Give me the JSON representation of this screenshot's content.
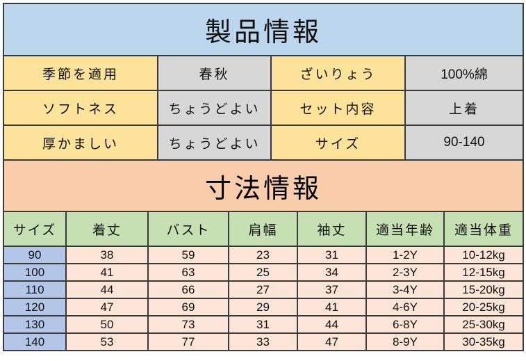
{
  "product_info": {
    "title": "製品情報",
    "rows": [
      [
        "季節を適用",
        "春秋",
        "ざいりょう",
        "100%綿"
      ],
      [
        "ソフトネス",
        "ちょうどよい",
        "セット内容",
        "上着"
      ],
      [
        "厚かましい",
        "ちょうどよい",
        "サイズ",
        "90-140"
      ]
    ]
  },
  "size_info": {
    "title": "寸法情報",
    "headers": [
      "サイズ",
      "着丈",
      "バスト",
      "肩幅",
      "袖丈",
      "適当年齢",
      "適当体重"
    ],
    "rows": [
      [
        "90",
        "38",
        "59",
        "23",
        "31",
        "1-2Y",
        "10-12kg"
      ],
      [
        "100",
        "41",
        "63",
        "25",
        "34",
        "2-3Y",
        "12-15kg"
      ],
      [
        "110",
        "44",
        "66",
        "27",
        "37",
        "3-4Y",
        "15-20kg"
      ],
      [
        "120",
        "47",
        "69",
        "29",
        "41",
        "4-6Y",
        "20-25kg"
      ],
      [
        "130",
        "50",
        "73",
        "31",
        "44",
        "6-8Y",
        "25-30kg"
      ],
      [
        "140",
        "53",
        "77",
        "33",
        "47",
        "8-9Y",
        "30-35kg"
      ]
    ]
  },
  "colors": {
    "title_blue": "#bcd6ee",
    "label_yellow": "#fde29a",
    "value_gray": "#d7d7d7",
    "title_peach": "#f9ccac",
    "header_green": "#c6e0b4",
    "cell_peach": "#fce4d6",
    "size_blue": "#b4c6e7"
  }
}
